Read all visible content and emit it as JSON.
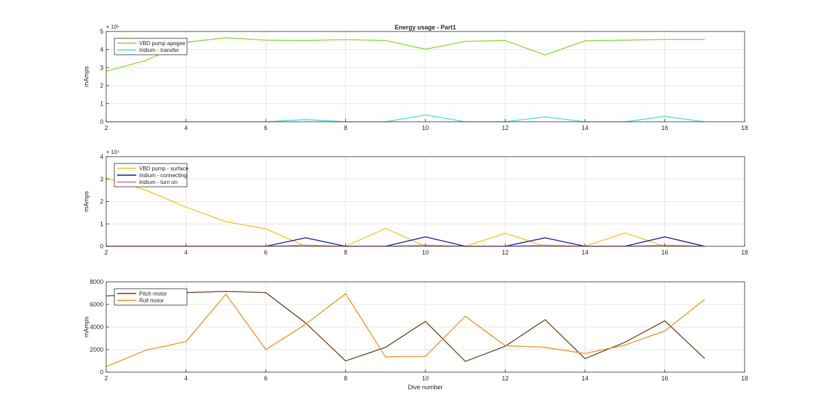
{
  "figure": {
    "title": "Energy usage - Part1",
    "xlabel": "Dive number"
  },
  "chart_data": [
    {
      "type": "line",
      "title": "Energy usage - Part1",
      "xlabel": "",
      "ylabel": "mAmps",
      "xlim": [
        2,
        18
      ],
      "ylim": [
        0,
        5
      ],
      "xticks": [
        2,
        4,
        6,
        8,
        10,
        12,
        14,
        16,
        18
      ],
      "yticks": [
        0,
        1,
        2,
        3,
        4,
        5
      ],
      "exponent_label": "× 10⁵",
      "grid": true,
      "legend_position": "top-left",
      "x": [
        2,
        3,
        4,
        5,
        6,
        7,
        8,
        9,
        10,
        11,
        12,
        13,
        14,
        15,
        16,
        17
      ],
      "series": [
        {
          "name": "VBD pump apogee",
          "color": "#7fdb2f",
          "values": [
            2.8,
            3.4,
            4.4,
            4.65,
            4.52,
            4.5,
            4.55,
            4.5,
            4.02,
            4.45,
            4.5,
            3.7,
            4.48,
            4.52,
            4.56,
            4.56
          ]
        },
        {
          "name": "Iridium - transfer",
          "color": "#3ddbdb",
          "values": [
            0,
            0,
            0,
            0,
            0,
            0.12,
            0,
            0,
            0.38,
            0,
            0,
            0.27,
            0,
            0,
            0.3,
            0
          ]
        }
      ]
    },
    {
      "type": "line",
      "title": "",
      "xlabel": "",
      "ylabel": "mAmps",
      "xlim": [
        2,
        18
      ],
      "ylim": [
        0,
        4
      ],
      "xticks": [
        2,
        4,
        6,
        8,
        10,
        12,
        14,
        16,
        18
      ],
      "yticks": [
        0,
        1,
        2,
        3,
        4
      ],
      "exponent_label": "× 10⁴",
      "grid": true,
      "legend_position": "top-left",
      "x": [
        2,
        3,
        4,
        5,
        6,
        7,
        8,
        9,
        10,
        11,
        12,
        13,
        14,
        15,
        16,
        17
      ],
      "series": [
        {
          "name": "VBD pump - surface",
          "color": "#f2c21a",
          "values": [
            3.05,
            2.5,
            1.75,
            1.1,
            0.78,
            0,
            0,
            0.8,
            0,
            0,
            0.58,
            0,
            0,
            0.6,
            0,
            0
          ]
        },
        {
          "name": "Iridium - connecting",
          "color": "#0b0b8f",
          "values": [
            0,
            0,
            0,
            0,
            0,
            0.38,
            0,
            0,
            0.42,
            0,
            0,
            0.38,
            0,
            0,
            0.42,
            0
          ]
        },
        {
          "name": "Iridium - turn on",
          "color": "#e060c8",
          "values": [
            0,
            0,
            0,
            0,
            0,
            0.05,
            0,
            0,
            0.05,
            0,
            0,
            0.05,
            0,
            0,
            0.05,
            0
          ]
        }
      ]
    },
    {
      "type": "line",
      "title": "",
      "xlabel": "Dive number",
      "ylabel": "mAmps",
      "xlim": [
        2,
        18
      ],
      "ylim": [
        0,
        8000
      ],
      "xticks": [
        2,
        4,
        6,
        8,
        10,
        12,
        14,
        16,
        18
      ],
      "yticks": [
        0,
        2000,
        4000,
        6000,
        8000
      ],
      "exponent_label": "",
      "grid": true,
      "legend_position": "top-left",
      "x": [
        2,
        3,
        4,
        5,
        6,
        7,
        8,
        9,
        10,
        11,
        12,
        13,
        14,
        15,
        16,
        17
      ],
      "series": [
        {
          "name": "Pitch motor",
          "color": "#6b3a12",
          "values": [
            6750,
            6900,
            7050,
            7150,
            7050,
            4350,
            1000,
            2200,
            4500,
            950,
            2300,
            4650,
            1200,
            2650,
            4550,
            1200
          ]
        },
        {
          "name": "Roll motor",
          "color": "#ee8d1c",
          "values": [
            500,
            1950,
            2700,
            6900,
            2000,
            4250,
            6950,
            1350,
            1400,
            4950,
            2350,
            2200,
            1650,
            2400,
            3650,
            6450
          ]
        }
      ]
    }
  ]
}
